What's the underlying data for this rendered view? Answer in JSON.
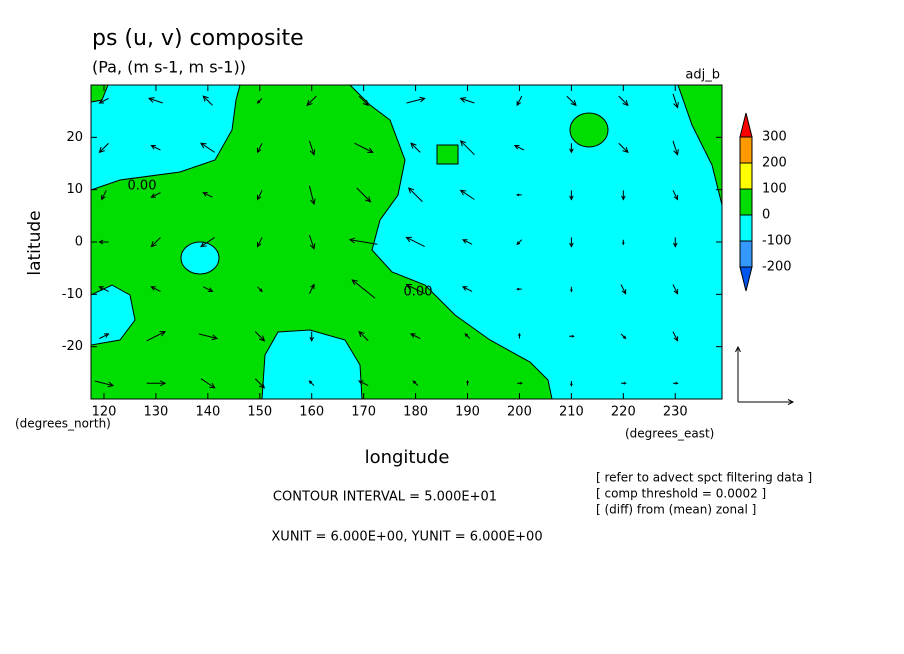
{
  "chart_data": {
    "type": "vector-contour",
    "title": "ps (u, v) composite",
    "subtitle": "(Pa, (m s-1, m s-1))",
    "run_label": "adj_b",
    "x_label": "longitude",
    "y_label": "latitude",
    "x_unit_label": "(degrees_east)",
    "y_unit_label": "(degrees_north)",
    "xlim": [
      117.5,
      239
    ],
    "ylim": [
      -30,
      30
    ],
    "xticks": [
      120,
      130,
      140,
      150,
      160,
      170,
      180,
      190,
      200,
      210,
      220,
      230
    ],
    "yticks": [
      -20,
      -10,
      0,
      10,
      20
    ],
    "contour_interval_text": "CONTOUR INTERVAL = 5.000E+01",
    "unit_text": "XUNIT = 6.000E+00, YUNIT = 6.000E+00",
    "vector_unit": 6,
    "notes": [
      "[ refer to advect spct filtering data ]",
      "[ comp threshold = 0.0002 ]",
      "[ (diff) from (mean) zonal ]"
    ],
    "contour_labels": [
      {
        "value": 0,
        "label": "0.00"
      },
      {
        "value": 0,
        "label": "0.00"
      }
    ],
    "colorbar": {
      "ticks": [
        300,
        200,
        100,
        0,
        -100,
        -200
      ],
      "colors": [
        "#ff0000",
        "#ff9900",
        "#ffff00",
        "#00dd00",
        "#00ffff",
        "#3399ff",
        "#0055ee"
      ]
    },
    "vectors": {
      "lon": [
        120,
        130,
        140,
        150,
        160,
        170,
        180,
        190,
        200,
        210,
        220,
        230
      ],
      "lat": [
        27,
        18,
        9,
        0,
        -9,
        -18,
        -27
      ],
      "u": [
        [
          -1,
          -1.5,
          -1,
          -0.5,
          -1,
          1,
          2,
          -1.5,
          -0.5,
          1,
          1,
          0.5
        ],
        [
          -1,
          -1,
          -1.5,
          -0.5,
          0.5,
          2,
          -1,
          -1.5,
          -1,
          0,
          1,
          0.5
        ],
        [
          -0.5,
          -1,
          -1,
          -0.5,
          0.5,
          1.5,
          -1.5,
          -1.5,
          -0.5,
          0,
          0,
          0.5
        ],
        [
          -1,
          -1,
          -1.5,
          -0.5,
          0.5,
          -3,
          -2,
          -1,
          -0.5,
          0,
          0,
          0
        ],
        [
          -1,
          -1,
          1,
          0.5,
          0.5,
          -2.5,
          -2,
          -1,
          -0.5,
          0,
          0.5,
          0.5
        ],
        [
          1,
          2,
          2,
          1,
          0,
          -1,
          -1,
          -0.5,
          0,
          0.5,
          0.5,
          0.5
        ],
        [
          2,
          2,
          1.5,
          1,
          -0.5,
          -1,
          -0.5,
          0,
          0.5,
          0,
          0.5,
          0.5
        ]
      ],
      "v": [
        [
          -0.5,
          0.5,
          1,
          -0.5,
          -1,
          -1,
          0.5,
          0.5,
          -1,
          -1,
          -1,
          -1.5
        ],
        [
          -1,
          0.5,
          1,
          -1,
          -1.5,
          -1,
          1,
          1.5,
          0.5,
          -1,
          -1,
          -1.5
        ],
        [
          -1,
          -0.5,
          0.5,
          -1,
          -2,
          -1.5,
          1.5,
          1,
          0,
          -1,
          -1,
          -1
        ],
        [
          0,
          -1,
          -1,
          -1,
          -1.5,
          0.5,
          1,
          0.5,
          -0.5,
          -1,
          -0.5,
          -1
        ],
        [
          0.5,
          0.5,
          -0.5,
          -0.5,
          1,
          2,
          1,
          0.5,
          0,
          -0.5,
          -1,
          -1
        ],
        [
          0.5,
          1,
          -0.5,
          -1,
          -1,
          1,
          0.5,
          0.5,
          0.5,
          0,
          -0.5,
          -1
        ],
        [
          -0.5,
          0,
          -1,
          -1,
          0.5,
          0.5,
          0.5,
          0.5,
          0,
          -0.5,
          0,
          0
        ]
      ]
    }
  }
}
